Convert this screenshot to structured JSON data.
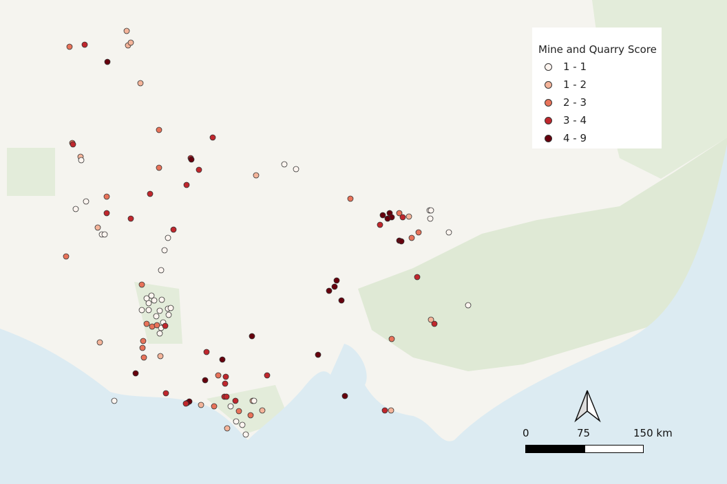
{
  "legend": {
    "title": "Mine and Quarry Score",
    "items": [
      {
        "label": "1 - 1",
        "color": "#fff5f0"
      },
      {
        "label": "1 - 2",
        "color": "#f4b49a"
      },
      {
        "label": "2 - 3",
        "color": "#e8735a"
      },
      {
        "label": "3 - 4",
        "color": "#c0272d"
      },
      {
        "label": "4 - 9",
        "color": "#67000d"
      }
    ]
  },
  "scale": {
    "labels": [
      "0",
      "75",
      "150 km"
    ]
  },
  "north_arrow": {
    "icon": "north-arrow-icon"
  },
  "colors": {
    "land": "#f5f4ef",
    "sea": "#dcebf2",
    "park": "#dfe9d5"
  }
}
